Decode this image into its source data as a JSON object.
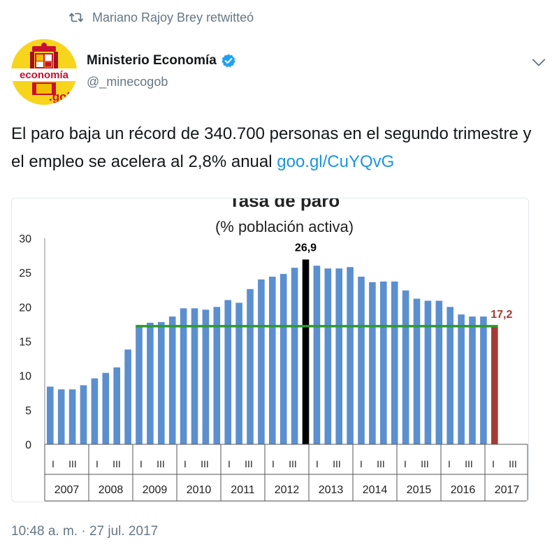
{
  "retweet": {
    "label": "Mariano Rajoy Brey retwitteó"
  },
  "author": {
    "name": "Ministerio Economía",
    "handle": "@_minecogob",
    "avatar_text_top": "economía",
    "avatar_text_bottom": ".gob"
  },
  "tweet": {
    "text": "El paro baja un récord de 340.700 personas en el segundo trimestre y el empleo se acelera al 2,8% anual ",
    "link": "goo.gl/CuYQvG",
    "timestamp": "10:48 a. m. · 27 jul. 2017"
  },
  "colors": {
    "bar": "#5b8fcf",
    "peak_bar": "#000000",
    "last_bar": "#a33a36",
    "reference_line": "#2e9a2e",
    "last_label": "#a33a36",
    "link": "#1b95e0"
  },
  "chart_data": {
    "type": "bar",
    "title": "Tasa de paro",
    "subtitle": "(% población activa)",
    "ylim": [
      0,
      30
    ],
    "yticks": [
      0,
      5,
      10,
      15,
      20,
      25,
      30
    ],
    "quarter_labels": [
      "I",
      "III"
    ],
    "years": [
      "2007",
      "2008",
      "2009",
      "2010",
      "2011",
      "2012",
      "2013",
      "2014",
      "2015",
      "2016",
      "2017"
    ],
    "values": [
      8.4,
      8.0,
      8.0,
      8.6,
      9.6,
      10.4,
      11.2,
      13.8,
      17.2,
      17.7,
      17.8,
      18.6,
      19.8,
      19.8,
      19.6,
      20.0,
      21.0,
      20.6,
      22.6,
      24.0,
      24.4,
      24.8,
      25.7,
      26.9,
      26.0,
      25.6,
      25.6,
      25.8,
      24.4,
      23.6,
      23.7,
      23.7,
      22.4,
      21.2,
      20.9,
      20.9,
      20.0,
      18.9,
      18.6,
      18.6,
      17.2
    ],
    "peak_label": "26,9",
    "last_label": "17,2",
    "reference_level": 17.2
  }
}
